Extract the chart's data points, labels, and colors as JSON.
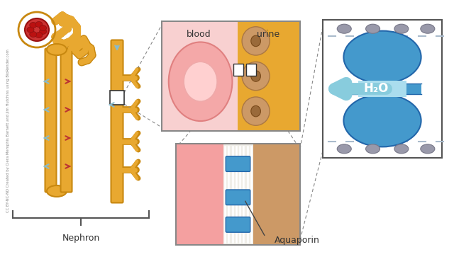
{
  "bg_color": "#ffffff",
  "nephron_label": "Nephron",
  "blood_label": "blood",
  "urine_label": "urine",
  "aquaporin_label": "Aquaporin",
  "h2o_label": "H₂O",
  "tc": "#E8A830",
  "ec": "#C88810",
  "glom_color": "#CC3333",
  "glom_inner": "#AA1111",
  "blood_cell_color": "#F4A8A8",
  "blood_cell_edge": "#E08080",
  "blood_bg_color": "#F8D0D0",
  "urine_bg_color": "#E8A830",
  "cell_body_color": "#CC9966",
  "cell_nuc_color": "#A07050",
  "aq_blue": "#4499CC",
  "aq_dark": "#2266AA",
  "aq_light": "#AADDEE",
  "aq_gray": "#9999AA",
  "h2o_arrow_color": "#88CCDD",
  "red_arr": "#BB3333",
  "blue_arr": "#88BBCC",
  "text_color": "#333333",
  "panel_border": "#888888",
  "dash_color": "#888888",
  "membrane_color": "#E8E8E8",
  "mem_line_color": "#CCCCCC",
  "bottom_blood_color": "#F4A0A0",
  "bottom_urine_color": "#CC9966",
  "credit_text": "CC BY-NC-ND Created by Ciera Memphis Barnett and Jim Hutchins using BioRender.com"
}
